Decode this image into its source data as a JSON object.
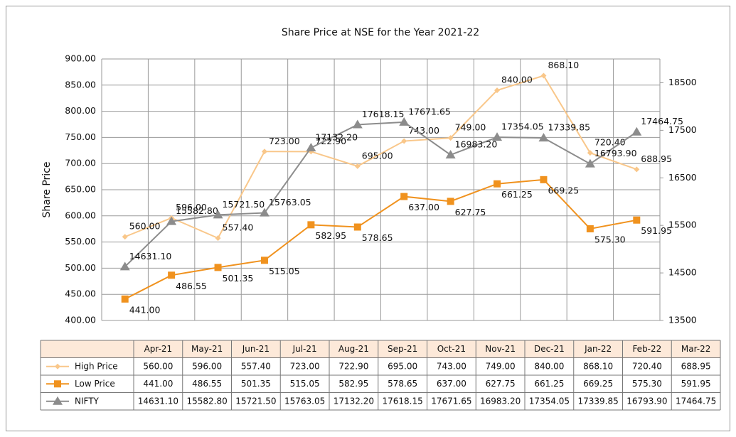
{
  "chart_data": {
    "type": "line",
    "title": "Share Price at NSE for the Year 2021-22",
    "ylabel": "Share Price",
    "categories": [
      "Apr-21",
      "May-21",
      "Jun-21",
      "Jul-21",
      "Aug-21",
      "Sep-21",
      "Oct-21",
      "Nov-21",
      "Dec-21",
      "Jan-22",
      "Feb-22",
      "Mar-22"
    ],
    "ylim": [
      400,
      900
    ],
    "yticks": [
      {
        "value": 400,
        "label": "400.00"
      },
      {
        "value": 450,
        "label": "450.00"
      },
      {
        "value": 500,
        "label": "500.00"
      },
      {
        "value": 550,
        "label": "550.00"
      },
      {
        "value": 600,
        "label": "600.00"
      },
      {
        "value": 650,
        "label": "650.00"
      },
      {
        "value": 700,
        "label": "700.00"
      },
      {
        "value": 750,
        "label": "750.00"
      },
      {
        "value": 800,
        "label": "800.00"
      },
      {
        "value": 850,
        "label": "850.00"
      },
      {
        "value": 900,
        "label": "900.00"
      }
    ],
    "y2lim": [
      13500,
      19000
    ],
    "y2ticks": [
      13500,
      14500,
      15500,
      16500,
      17500,
      18500
    ],
    "grid": true,
    "series": [
      {
        "name": "High Price",
        "color": "#f9c78a",
        "marker": "diamond",
        "values": [
          560,
          596,
          557.4,
          723,
          722.9,
          695,
          743,
          749,
          840,
          868.1,
          720.4,
          688.95
        ],
        "value_labels": [
          "560.00",
          "596.00",
          "557.40",
          "723.00",
          "722.90",
          "695.00",
          "743.00",
          "749.00",
          "840.00",
          "868.10",
          "720.40",
          "688.95"
        ]
      },
      {
        "name": "Low Price",
        "color": "#f0921e",
        "marker": "square",
        "values": [
          441,
          486.55,
          501.35,
          515.05,
          582.95,
          578.65,
          637,
          627.75,
          661.25,
          669.25,
          575.3,
          591.95
        ],
        "value_labels": [
          "441.00",
          "486.55",
          "501.35",
          "515.05",
          "582.95",
          "578.65",
          "637.00",
          "627.75",
          "661.25",
          "669.25",
          "575.30",
          "591.95"
        ]
      },
      {
        "name": "NIFTY",
        "color": "#8c8c8c",
        "marker": "triangle",
        "axis": "y2",
        "values": [
          14631.1,
          15582.8,
          15721.5,
          15763.05,
          17132.2,
          17618.15,
          17671.65,
          16983.2,
          17354.05,
          17339.85,
          16793.9,
          17464.75
        ],
        "value_labels": [
          "14631.10",
          "15582.80",
          "15721.50",
          "15763.05",
          "17132.20",
          "17618.15",
          "17671.65",
          "16983.20",
          "17354.05",
          "17339.85",
          "16793.90",
          "17464.75"
        ]
      }
    ]
  }
}
